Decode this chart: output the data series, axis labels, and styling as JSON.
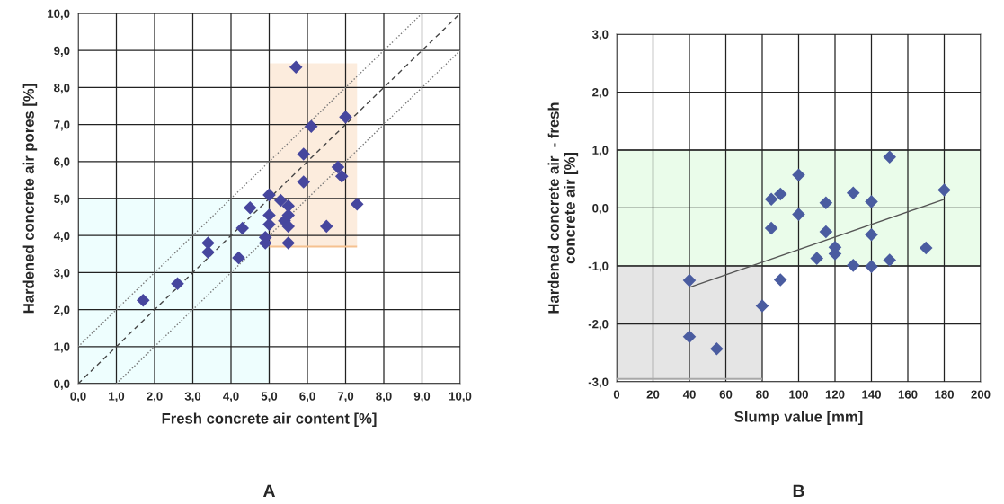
{
  "chart_data": [
    {
      "type": "scatter",
      "title": "A",
      "xlabel": "Fresh concrete air content [%]",
      "ylabel": "Hardened concrete air pores [%]",
      "xlim": [
        0,
        10
      ],
      "ylim": [
        0,
        10
      ],
      "xticks": [
        {
          "value": 0,
          "label": "0,0"
        },
        {
          "value": 1,
          "label": "1,0"
        },
        {
          "value": 2,
          "label": "2,0"
        },
        {
          "value": 3,
          "label": "3,0"
        },
        {
          "value": 4,
          "label": "4,0"
        },
        {
          "value": 5,
          "label": "5,0"
        },
        {
          "value": 6,
          "label": "6,0"
        },
        {
          "value": 7,
          "label": "7,0"
        },
        {
          "value": 8,
          "label": "8,0"
        },
        {
          "value": 9,
          "label": "9,0"
        },
        {
          "value": 10,
          "label": "10,0"
        }
      ],
      "yticks": [
        {
          "value": 0,
          "label": "0,0"
        },
        {
          "value": 1,
          "label": "1,0"
        },
        {
          "value": 2,
          "label": "2,0"
        },
        {
          "value": 3,
          "label": "3,0"
        },
        {
          "value": 4,
          "label": "4,0"
        },
        {
          "value": 5,
          "label": "5,0"
        },
        {
          "value": 6,
          "label": "6,0"
        },
        {
          "value": 7,
          "label": "7,0"
        },
        {
          "value": 8,
          "label": "8,0"
        },
        {
          "value": 9,
          "label": "9,0"
        },
        {
          "value": 10,
          "label": "10,0"
        }
      ],
      "grid": true,
      "legend": false,
      "series": [
        {
          "type": "area",
          "color": "#eefefe",
          "x": [
            0,
            5
          ],
          "values": [
            5,
            5
          ]
        },
        {
          "type": "line",
          "color": "#f5c190",
          "x": [
            5,
            7.3
          ],
          "values": [
            3.7,
            3.7
          ],
          "lower": [
            3.7,
            3.7
          ],
          "upper": [
            8.65,
            8.65
          ]
        },
        {
          "type": "line",
          "color": "#444444",
          "line_style": "dashed",
          "x": [
            0,
            10
          ],
          "values": [
            0,
            10
          ]
        },
        {
          "type": "line",
          "color": "#777777",
          "line_style": "dotted",
          "x": [
            0,
            9
          ],
          "values": [
            1,
            10
          ]
        },
        {
          "type": "line",
          "color": "#777777",
          "line_style": "dotted",
          "x": [
            1,
            10
          ],
          "values": [
            0,
            9
          ]
        },
        {
          "type": "scatter",
          "marker": "diamond",
          "color": "#46469e",
          "x": [
            1.7,
            2.6,
            3.4,
            3.4,
            4.2,
            4.3,
            4.5,
            4.9,
            4.9,
            5.0,
            5.0,
            5.0,
            5.3,
            5.5,
            5.5,
            5.4,
            5.5,
            5.5,
            5.7,
            5.9,
            5.9,
            6.1,
            6.5,
            6.8,
            6.9,
            7.0,
            7.3
          ],
          "values": [
            2.25,
            2.7,
            3.8,
            3.55,
            3.4,
            4.2,
            4.75,
            3.8,
            3.95,
            4.55,
            4.3,
            5.1,
            4.95,
            4.8,
            4.55,
            4.4,
            4.25,
            3.8,
            8.55,
            6.2,
            5.45,
            6.95,
            4.25,
            5.85,
            5.6,
            7.2,
            4.85
          ]
        }
      ]
    },
    {
      "type": "scatter",
      "title": "B",
      "xlabel": "Slump value [mm]",
      "ylabel": "Hardened concrete air  - fresh\nconcrete air [%]",
      "xlim": [
        0,
        200
      ],
      "ylim": [
        -3,
        3
      ],
      "xticks": [
        0,
        20,
        40,
        60,
        80,
        100,
        120,
        140,
        160,
        180,
        200
      ],
      "yticks": [
        {
          "value": -3,
          "label": "-3,0"
        },
        {
          "value": -2,
          "label": "-2,0"
        },
        {
          "value": -1,
          "label": "-1,0"
        },
        {
          "value": 0,
          "label": "0,0"
        },
        {
          "value": 1,
          "label": "1,0"
        },
        {
          "value": 2,
          "label": "2,0"
        },
        {
          "value": 3,
          "label": "3,0"
        }
      ],
      "grid": true,
      "legend": false,
      "bands": [
        {
          "axis": "y",
          "from": -1,
          "to": 1,
          "color": "#eafcea"
        }
      ],
      "series": [
        {
          "type": "line",
          "color": "#a8a8a8",
          "x": [
            0,
            80
          ],
          "values": [
            -2.95,
            -2.95
          ],
          "lower": [
            -2.95,
            -2.95
          ],
          "upper": [
            -1,
            -1
          ]
        },
        {
          "type": "line",
          "color": "#555555",
          "line_style": "solid",
          "x": [
            40,
            180
          ],
          "values": [
            -1.37,
            0.15
          ]
        },
        {
          "type": "scatter",
          "marker": "diamond",
          "color": "#4a5ca0",
          "x": [
            150,
            100,
            90,
            85,
            180,
            130,
            115,
            140,
            100,
            85,
            115,
            140,
            120,
            120,
            110,
            170,
            150,
            130,
            140,
            40,
            90,
            80,
            40,
            55
          ],
          "values": [
            0.88,
            0.57,
            0.24,
            0.15,
            0.31,
            0.26,
            0.09,
            0.11,
            -0.11,
            -0.35,
            -0.41,
            -0.46,
            -0.68,
            -0.79,
            -0.87,
            -0.69,
            -0.9,
            -0.99,
            -1.01,
            -1.25,
            -1.24,
            -1.69,
            -2.22,
            -2.43
          ]
        }
      ]
    }
  ]
}
